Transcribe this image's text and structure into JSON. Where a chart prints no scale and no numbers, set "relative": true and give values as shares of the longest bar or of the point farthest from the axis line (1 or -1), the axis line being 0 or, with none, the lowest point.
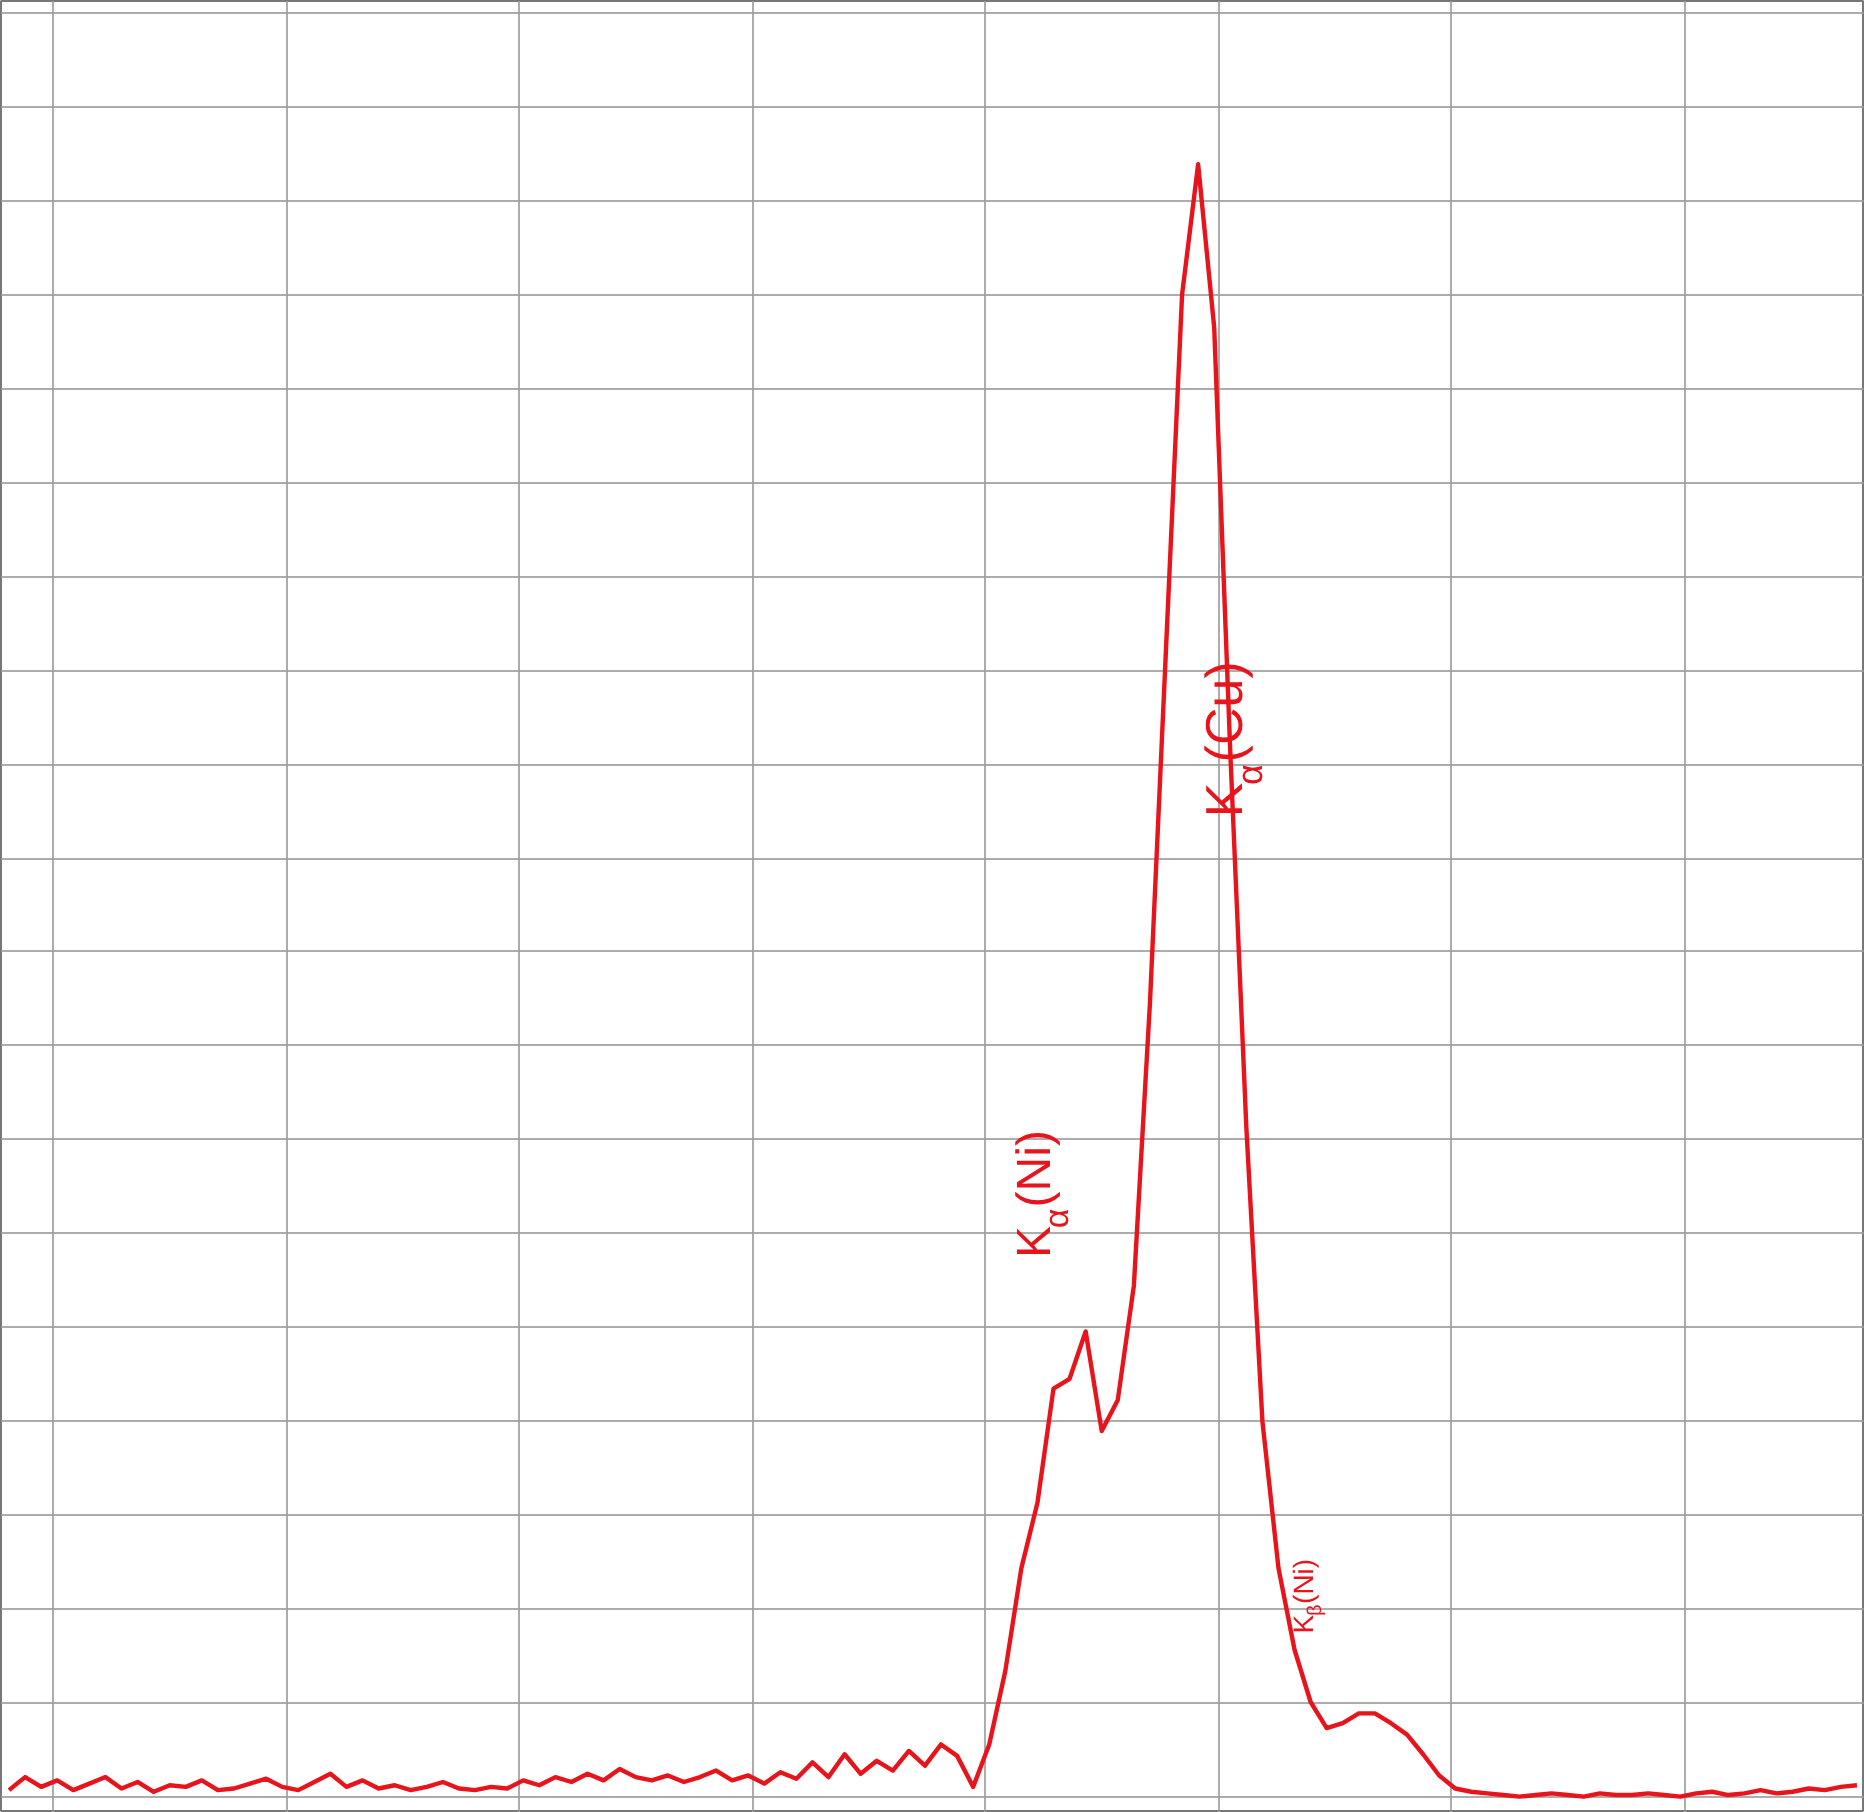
{
  "chart_data": {
    "type": "line",
    "relative": true,
    "grid": true,
    "marker": "none",
    "line_style": "solid",
    "categories": [
      null,
      null,
      null,
      null,
      null,
      null,
      null,
      null,
      null,
      null,
      null,
      null,
      null,
      null,
      null,
      null,
      null,
      null,
      null,
      null,
      null,
      null,
      null,
      null,
      null,
      null,
      null,
      null,
      null,
      null,
      null,
      null,
      null,
      null,
      null,
      null,
      null,
      null,
      null,
      null,
      null,
      null,
      null,
      null,
      null,
      null,
      null,
      null,
      null,
      null,
      null,
      null,
      null,
      null,
      null,
      null,
      null,
      null,
      null,
      null,
      null,
      null,
      null,
      null,
      null,
      null,
      null,
      null,
      null,
      null,
      null,
      null,
      null,
      null,
      null,
      null,
      null,
      null,
      null,
      null,
      null,
      null,
      null,
      null,
      null,
      null,
      null,
      null,
      null,
      null,
      null,
      null,
      null,
      null,
      null,
      null,
      null,
      null,
      null,
      null,
      null,
      null,
      null,
      null,
      null,
      null,
      null,
      null,
      null,
      null,
      null,
      null,
      null,
      null,
      null,
      null
    ],
    "series": [
      {
        "color": "#e8141c",
        "values": [
          0.004,
          0.012,
          0.006,
          0.01,
          0.004,
          0.008,
          0.012,
          0.005,
          0.009,
          0.003,
          0.007,
          0.006,
          0.01,
          0.004,
          0.005,
          0.008,
          0.011,
          0.006,
          0.004,
          0.009,
          0.014,
          0.006,
          0.01,
          0.005,
          0.007,
          0.004,
          0.006,
          0.009,
          0.005,
          0.004,
          0.006,
          0.005,
          0.01,
          0.007,
          0.012,
          0.009,
          0.014,
          0.01,
          0.017,
          0.012,
          0.01,
          0.013,
          0.009,
          0.012,
          0.016,
          0.01,
          0.013,
          0.008,
          0.015,
          0.011,
          0.021,
          0.012,
          0.026,
          0.014,
          0.022,
          0.016,
          0.028,
          0.019,
          0.032,
          0.025,
          0.006,
          0.032,
          0.077,
          0.14,
          0.18,
          0.25,
          0.256,
          0.285,
          0.224,
          0.243,
          0.313,
          0.486,
          0.703,
          0.92,
          1.0,
          0.9,
          0.64,
          0.41,
          0.23,
          0.14,
          0.09,
          0.058,
          0.042,
          0.045,
          0.051,
          0.051,
          0.045,
          0.038,
          0.026,
          0.013,
          0.005,
          0.003,
          0.002,
          0.001,
          0.0,
          0.001,
          0.002,
          0.001,
          0.0,
          0.002,
          0.001,
          0.001,
          0.002,
          0.001,
          0.0,
          0.002,
          0.003,
          0.001,
          0.002,
          0.004,
          0.002,
          0.003,
          0.005,
          0.004,
          0.006,
          0.007
        ]
      }
    ],
    "annotations": [
      "K$_{α}$(Cu)",
      "K$_{α}$(Ni)",
      "K$_{β}$(Ni)"
    ]
  }
}
